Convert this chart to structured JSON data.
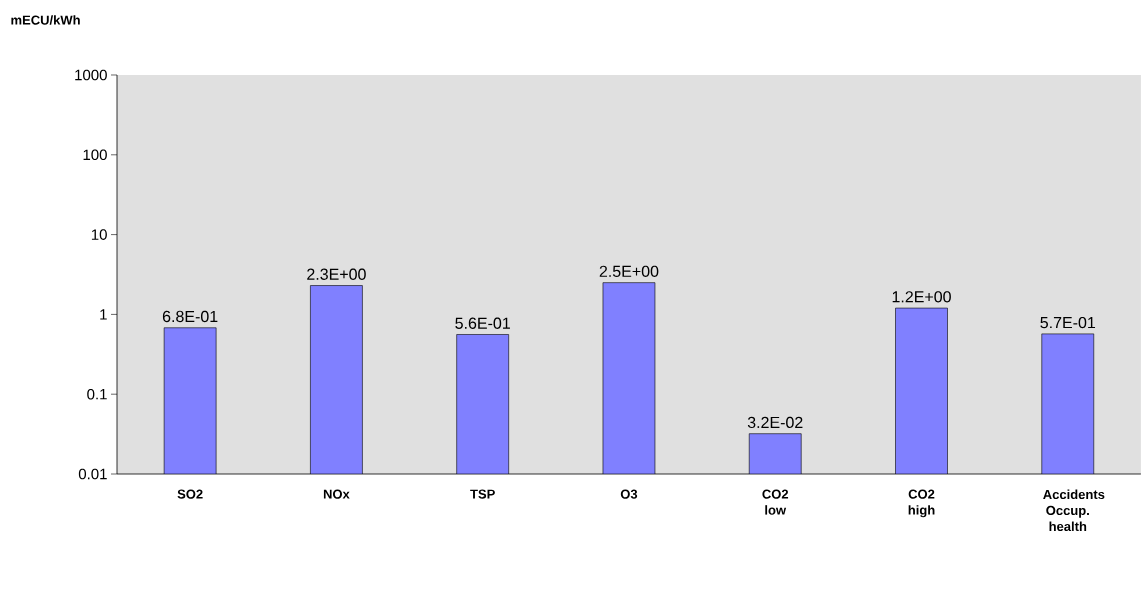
{
  "chart_data": {
    "type": "bar",
    "ylabel": "mECU/kWh",
    "categories": [
      "SO2",
      "NOx",
      "TSP",
      "O3",
      "CO2 low",
      "CO2 high",
      "Accidents Occup. health"
    ],
    "values": [
      0.68,
      2.3,
      0.56,
      2.5,
      0.032,
      1.2,
      0.57
    ],
    "value_labels": [
      "6.8E-01",
      "2.3E+00",
      "5.6E-01",
      "2.5E+00",
      "3.2E-02",
      "1.2E+00",
      "5.7E-01"
    ],
    "color": "#8080ff",
    "log": "y",
    "ylim": [
      0.01,
      1000
    ],
    "yticks": [
      {
        "value": 0.01,
        "label": "0.01"
      },
      {
        "value": 0.1,
        "label": "0.1"
      },
      {
        "value": 1,
        "label": "1"
      },
      {
        "value": 10,
        "label": "10"
      },
      {
        "value": 100,
        "label": "100"
      },
      {
        "value": 1000,
        "label": "1000"
      }
    ],
    "grid": false
  }
}
